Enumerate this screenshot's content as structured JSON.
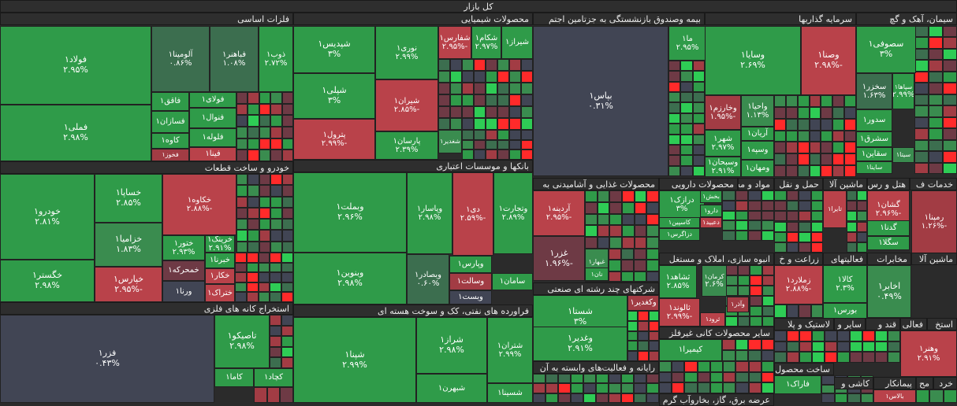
{
  "title": "کل بازار",
  "colors": {
    "g3": "#2f9b49",
    "g2": "#3a8c4f",
    "g1": "#3c6e4f",
    "n": "#414554",
    "r1": "#6e3a45",
    "r2": "#a23c44",
    "r3": "#b9424a",
    "gb": "#2ecc55",
    "rb": "#ff2a2a"
  },
  "chart_data": {
    "type": "treemap",
    "sectors": [
      {
        "name": "فلزات اساسی",
        "stocks": [
          {
            "name": "فولاد۱",
            "change": 2.95
          },
          {
            "name": "آلومینا۱",
            "change": 0.86
          },
          {
            "name": "فباهنر۱",
            "change": 1.08
          },
          {
            "name": "ذوب۱",
            "change": 2.72
          },
          {
            "name": "فملی۱",
            "change": 2.98
          },
          {
            "name": "فولای۱"
          },
          {
            "name": "فاقق۱"
          },
          {
            "name": "فنوال۱"
          },
          {
            "name": "فسازان۱"
          },
          {
            "name": "فلوله۱"
          },
          {
            "name": "کاوه۱"
          },
          {
            "name": "فینا۱"
          },
          {
            "name": "فخوز۱"
          }
        ]
      },
      {
        "name": "محصولات شیمیایی",
        "stocks": [
          {
            "name": "شپدیس۱",
            "change": 3
          },
          {
            "name": "نوری۱",
            "change": 2.99
          },
          {
            "name": "شفارس۱",
            "change": -2.95
          },
          {
            "name": "شکام۱",
            "change": 2.97
          },
          {
            "name": "شیراز۱"
          },
          {
            "name": "شپلی۱",
            "change": 3
          },
          {
            "name": "شیران۱",
            "change": -2.85
          },
          {
            "name": "پترول۱",
            "change": -2.99
          },
          {
            "name": "پارسان۱",
            "change": 2.39
          },
          {
            "name": "شغدیر۱"
          }
        ]
      },
      {
        "name": "بیمه وصندوق بازنشستگی به جزتامین اجتم",
        "stocks": [
          {
            "name": "بپاس۱",
            "change": 0.31
          },
          {
            "name": "ما۱",
            "change": 2.95
          }
        ]
      },
      {
        "name": "سرمایه گذاریها",
        "stocks": [
          {
            "name": "وسایا۱",
            "change": 2.69
          },
          {
            "name": "وصنا۱",
            "change": -2.98
          },
          {
            "name": "وخارزم۱",
            "change": -1.95
          },
          {
            "name": "واحیا۱",
            "change": 1.13
          },
          {
            "name": "آریان۱"
          },
          {
            "name": "شهر۱",
            "change": 2.97
          },
          {
            "name": "وسپه۱"
          },
          {
            "name": "وسبحان۱",
            "change": 2.91
          },
          {
            "name": "ومهان۱"
          }
        ]
      },
      {
        "name": "سیمان، آهک و گچ",
        "stocks": [
          {
            "name": "سصوفی۱",
            "change": 3
          },
          {
            "name": "سخزر۱",
            "change": 1.63
          },
          {
            "name": "سپاها۱",
            "change": 2.99
          },
          {
            "name": "سدور۱"
          },
          {
            "name": "سشرق۱"
          },
          {
            "name": "سقاین۱"
          },
          {
            "name": "سیتا۱"
          },
          {
            "name": "ساینا۱"
          }
        ]
      },
      {
        "name": "خودرو و ساخت قطعات",
        "stocks": [
          {
            "name": "خودرو۱",
            "change": 2.81
          },
          {
            "name": "خساپا۱",
            "change": 2.85
          },
          {
            "name": "خکاوه۱",
            "change": -2.88
          },
          {
            "name": "خزامیا۱",
            "change": 1.83
          },
          {
            "name": "ختور۱",
            "change": 2.93
          },
          {
            "name": "خرینگ۱",
            "change": 2.91
          },
          {
            "name": "خگستر۱",
            "change": 2.98
          },
          {
            "name": "خپارس۱",
            "change": -2.95
          },
          {
            "name": "خمحرکه۱"
          },
          {
            "name": "خبرنا۱"
          },
          {
            "name": "خکار۱"
          },
          {
            "name": "ورنا۱"
          },
          {
            "name": "ختراک۱"
          }
        ]
      },
      {
        "name": "بانکها و موسسات اعتباری",
        "stocks": [
          {
            "name": "وبملت۱",
            "change": 2.96
          },
          {
            "name": "وپاسار۱",
            "change": 2.98
          },
          {
            "name": "دی۱",
            "change": -2.59
          },
          {
            "name": "وتجارت۱",
            "change": 2.89
          },
          {
            "name": "وبنوین۱",
            "change": 2.98
          },
          {
            "name": "وبصادر۱",
            "change": 0.6
          },
          {
            "name": "وپارس۱"
          },
          {
            "name": "وسالت۱"
          },
          {
            "name": "سامان۱"
          },
          {
            "name": "وبست۱"
          }
        ]
      },
      {
        "name": "استخراج کانه های فلزی",
        "stocks": [
          {
            "name": "فزر۱",
            "change": 0.43
          },
          {
            "name": "تاصیکو۱",
            "change": 2.98
          },
          {
            "name": "کاما۱"
          },
          {
            "name": "کچاد۱"
          }
        ]
      },
      {
        "name": "فراورده های نفتی، کک و سوخت هسته ای",
        "stocks": [
          {
            "name": "شپنا۱",
            "change": 2.99
          },
          {
            "name": "شراز۱",
            "change": 2.98
          },
          {
            "name": "شتران۱",
            "change": 2.99
          },
          {
            "name": "شبهرن۱"
          },
          {
            "name": "شسینا۱"
          }
        ]
      },
      {
        "name": "محصولات غذایی و آشامیدنی به",
        "stocks": [
          {
            "name": "آردینه۱",
            "change": -2.95
          },
          {
            "name": "غزر۱",
            "change": -1.96
          },
          {
            "name": "غبهار۱"
          },
          {
            "name": "نان۱"
          }
        ]
      },
      {
        "name": "شرکتهای چند رشته ای صنعتی",
        "stocks": [
          {
            "name": "شستا۱",
            "change": 3
          },
          {
            "name": "وغدیر۱",
            "change": 2.91
          },
          {
            "name": "وکغدیر۱"
          }
        ]
      },
      {
        "name": "رایانه و فعالیت‌های وابسته به آن",
        "stocks": []
      },
      {
        "name": "محصولات دارویی",
        "stocks": [
          {
            "name": "درازک۱",
            "change": 3
          },
          {
            "name": "بخش۱"
          },
          {
            "name": "دارو۱"
          },
          {
            "name": "کاسپین۱"
          },
          {
            "name": "دعبید۱"
          },
          {
            "name": "دزاگرس۱"
          }
        ]
      },
      {
        "name": "انبوه سازی، املاک و مستغل",
        "stocks": [
          {
            "name": "ثشاهد۱",
            "change": 2.85
          },
          {
            "name": "کرمان۱",
            "change": 2.6
          },
          {
            "name": "ثالوند۱",
            "change": -2.99
          },
          {
            "name": "ثرود۱"
          },
          {
            "name": "وآذر۱"
          }
        ]
      },
      {
        "name": "سایر محصولات کانی غیرفلز",
        "stocks": [
          {
            "name": "کیمیرا۱"
          }
        ]
      },
      {
        "name": "مواد و محصولات"
      },
      {
        "name": "حمل و نقل"
      },
      {
        "name": "ماشین آلا"
      },
      {
        "name": "هتل و رس"
      },
      {
        "name": "خدمات ف"
      },
      {
        "name": "زراعت و خ",
        "stocks": [
          {
            "name": "زملارد۱",
            "change": -2.88
          }
        ]
      },
      {
        "name": "فعالیتهای",
        "stocks": [
          {
            "name": "کالا۱",
            "change": 2.3
          },
          {
            "name": "بورس۱"
          }
        ]
      },
      {
        "name": "مخابرات",
        "stocks": [
          {
            "name": "اخابر۱",
            "change": 0.49
          }
        ]
      },
      {
        "name": "ماشین آلا"
      },
      {
        "name": "ماشین آلات",
        "stocks": [
          {
            "name": "گشان۱",
            "change": -2.96
          },
          {
            "name": "تایرا۱"
          },
          {
            "name": "گدنا۱"
          },
          {
            "name": "سگلا۱"
          }
        ]
      },
      {
        "name": "رمپنا۱",
        "change": -1.26
      },
      {
        "name": "لاستیک و پلا"
      },
      {
        "name": "سایر و"
      },
      {
        "name": "قند و"
      },
      {
        "name": "فعالی"
      },
      {
        "name": "استخ"
      },
      {
        "name": "وهنر۱",
        "change": 2.91
      },
      {
        "name": "ساخت محصول",
        "stocks": [
          {
            "name": "فاراک۱"
          }
        ]
      },
      {
        "name": "کاشی و"
      },
      {
        "name": "پیمانکار"
      },
      {
        "name": "مح"
      },
      {
        "name": "خرد"
      },
      {
        "name": "بالاس۱"
      },
      {
        "name": "عرضه برق، گاز، بخاروآب گرم"
      }
    ]
  },
  "tiles": [
    {
      "t": "فولاد۱",
      "p": "۲.۹۵%",
      "c": "g3",
      "big": 1
    },
    {
      "t": "آلومینا۱",
      "p": "۰.۸۶%",
      "c": "g1"
    },
    {
      "t": "فباهنر۱",
      "p": "۱.۰۸%",
      "c": "g1"
    },
    {
      "t": "ذوب۱",
      "p": "۲.۷۲%",
      "c": "g3"
    },
    {
      "t": "فملی۱",
      "p": "۲.۹۸%",
      "c": "g3",
      "big": 1
    },
    {
      "t": "فاقق۱",
      "p": "",
      "c": "g3"
    },
    {
      "t": "فولای۱",
      "p": "",
      "c": "g3"
    },
    {
      "t": "فسازان۱",
      "p": "",
      "c": "g3"
    },
    {
      "t": "فنوال۱",
      "p": "",
      "c": "g3"
    },
    {
      "t": "کاوه۱",
      "p": "",
      "c": "g3"
    },
    {
      "t": "فلوله۱",
      "p": "",
      "c": "g3"
    },
    {
      "t": "فخوز۱",
      "p": "",
      "c": "r2"
    },
    {
      "t": "فینا۱",
      "p": "",
      "c": "r3"
    },
    {
      "t": "شپدیس۱",
      "p": "۳%",
      "c": "g3",
      "big": 1
    },
    {
      "t": "نوری۱",
      "p": "۲.۹۹%",
      "c": "g3"
    },
    {
      "t": "شفارس۱",
      "p": "-۲.۹۵%",
      "c": "r3"
    },
    {
      "t": "شکام۱",
      "p": "۲.۹۷%",
      "c": "g3"
    },
    {
      "t": "شیراز۱",
      "p": "",
      "c": "g3"
    },
    {
      "t": "شپلی۱",
      "p": "۳%",
      "c": "g3",
      "big": 1
    },
    {
      "t": "شیران۱",
      "p": "-۲.۸۵%",
      "c": "r3"
    },
    {
      "t": "پترول۱",
      "p": "-۲.۹۹%",
      "c": "r3"
    },
    {
      "t": "پارسان۱",
      "p": "۲.۳۹%",
      "c": "g3"
    },
    {
      "t": "شغدیر۱",
      "p": "",
      "c": "g2"
    },
    {
      "t": "بپاس۱",
      "p": "۰.۳۱%",
      "c": "n",
      "big": 1
    },
    {
      "t": "ما۱",
      "p": "۲.۹۵%",
      "c": "g3"
    },
    {
      "t": "وسایا۱",
      "p": "۲.۶۹%",
      "c": "g3",
      "big": 1
    },
    {
      "t": "وصنا۱",
      "p": "-۲.۹۸%",
      "c": "r3",
      "big": 1
    },
    {
      "t": "وخارزم۱",
      "p": "-۱.۹۵%",
      "c": "r2"
    },
    {
      "t": "واحیا۱",
      "p": "۱.۱۳%",
      "c": "g2"
    },
    {
      "t": "آریان۱",
      "p": "",
      "c": "g3"
    },
    {
      "t": "شهر۱",
      "p": "۲.۹۷%",
      "c": "g3"
    },
    {
      "t": "وسپه۱",
      "p": "",
      "c": "g3"
    },
    {
      "t": "وسبحان۱",
      "p": "۲.۹۱%",
      "c": "g3"
    },
    {
      "t": "ومهان۱",
      "p": "",
      "c": "g3"
    },
    {
      "t": "سصوفی۱",
      "p": "۳%",
      "c": "g3",
      "big": 1
    },
    {
      "t": "سخزر۱",
      "p": "۱.۶۳%",
      "c": "g1"
    },
    {
      "t": "سپاها۱",
      "p": "۲.۹۹%",
      "c": "g3"
    },
    {
      "t": "سدور۱",
      "p": "",
      "c": "g3"
    },
    {
      "t": "سشرق۱",
      "p": "",
      "c": "g3"
    },
    {
      "t": "سقاین۱",
      "p": "",
      "c": "g3"
    },
    {
      "t": "سیتا۱",
      "p": "",
      "c": "g2"
    },
    {
      "t": "ساینا۱",
      "p": "",
      "c": "g3"
    },
    {
      "t": "خودرو۱",
      "p": "۲.۸۱%",
      "c": "g3",
      "big": 1
    },
    {
      "t": "خساپا۱",
      "p": "۲.۸۵%",
      "c": "g3",
      "big": 1
    },
    {
      "t": "خکاوه۱",
      "p": "-۲.۸۸%",
      "c": "r3"
    },
    {
      "t": "خزامیا۱",
      "p": "۱.۸۳%",
      "c": "g2",
      "big": 1
    },
    {
      "t": "ختور۱",
      "p": "۲.۹۳%",
      "c": "g3"
    },
    {
      "t": "خرینگ۱",
      "p": "۲.۹۱%",
      "c": "g3"
    },
    {
      "t": "خگستر۱",
      "p": "۲.۹۸%",
      "c": "g3",
      "big": 1
    },
    {
      "t": "خپارس۱",
      "p": "-۲.۹۵%",
      "c": "r3",
      "big": 1
    },
    {
      "t": "خمحرکه۱",
      "p": "",
      "c": "r1"
    },
    {
      "t": "خبرنا۱",
      "p": "",
      "c": "g3"
    },
    {
      "t": "خکار۱",
      "p": "",
      "c": "r3"
    },
    {
      "t": "ورنا۱",
      "p": "",
      "c": "n"
    },
    {
      "t": "ختراک۱",
      "p": "",
      "c": "r3"
    },
    {
      "t": "وبملت۱",
      "p": "۲.۹۶%",
      "c": "g3",
      "big": 1
    },
    {
      "t": "وپاسار۱",
      "p": "۲.۹۸%",
      "c": "g3"
    },
    {
      "t": "دی۱",
      "p": "-۲.۵۹%",
      "c": "r3"
    },
    {
      "t": "وتجارت۱",
      "p": "۲.۸۹%",
      "c": "g3"
    },
    {
      "t": "وبنوین۱",
      "p": "۲.۹۸%",
      "c": "g3",
      "big": 1
    },
    {
      "t": "وبصادر۱",
      "p": "۰.۶۰%",
      "c": "g1"
    },
    {
      "t": "وپارس۱",
      "p": "",
      "c": "g3"
    },
    {
      "t": "وسالت۱",
      "p": "",
      "c": "r2"
    },
    {
      "t": "سامان۱",
      "p": "",
      "c": "g3"
    },
    {
      "t": "وبست۱",
      "p": "",
      "c": "n"
    },
    {
      "t": "فزر۱",
      "p": "۰.۴۳%",
      "c": "n",
      "big": 1
    },
    {
      "t": "تاصیکو۱",
      "p": "۲.۹۸%",
      "c": "g3",
      "big": 1
    },
    {
      "t": "کاما۱",
      "p": "",
      "c": "g3"
    },
    {
      "t": "کچاد۱",
      "p": "",
      "c": "g3"
    },
    {
      "t": "شپنا۱",
      "p": "۲.۹۹%",
      "c": "g3",
      "big": 1
    },
    {
      "t": "شراز۱",
      "p": "۲.۹۸%",
      "c": "g3",
      "big": 1
    },
    {
      "t": "شتران۱",
      "p": "۲.۹۹%",
      "c": "g3"
    },
    {
      "t": "شبهرن۱",
      "p": "",
      "c": "g3"
    },
    {
      "t": "شسینا۱",
      "p": "",
      "c": "g3"
    },
    {
      "t": "آردینه۱",
      "p": "-۲.۹۵%",
      "c": "r3"
    },
    {
      "t": "غزر۱",
      "p": "-۱.۹۶%",
      "c": "r1",
      "big": 1
    },
    {
      "t": "غبهار۱",
      "p": "",
      "c": "g2"
    },
    {
      "t": "نان۱",
      "p": "",
      "c": "g3"
    },
    {
      "t": "شستا۱",
      "p": "۳%",
      "c": "g3",
      "big": 1
    },
    {
      "t": "وغدیر۱",
      "p": "۲.۹۱%",
      "c": "g3",
      "big": 1
    },
    {
      "t": "وکغدیر۱",
      "p": "",
      "c": "r2"
    },
    {
      "t": "درازک۱",
      "p": "۳%",
      "c": "g3"
    },
    {
      "t": "بخش۱",
      "p": "",
      "c": "g3"
    },
    {
      "t": "دارو۱",
      "p": "",
      "c": "g3"
    },
    {
      "t": "کاسپین۱",
      "p": "",
      "c": "g3"
    },
    {
      "t": "دعبید۱",
      "p": "",
      "c": "r3"
    },
    {
      "t": "دزاگرس۱",
      "p": "",
      "c": "g3"
    },
    {
      "t": "ثشاهد۱",
      "p": "۲.۸۵%",
      "c": "g3"
    },
    {
      "t": "کرمان۱",
      "p": "۲.۶%",
      "c": "g2"
    },
    {
      "t": "ثالوند۱",
      "p": "-۲.۹۹%",
      "c": "r3"
    },
    {
      "t": "ثرود۱",
      "p": "",
      "c": "r3"
    },
    {
      "t": "وآذر۱",
      "p": "",
      "c": "r2"
    },
    {
      "t": "کیمیرا۱",
      "p": "",
      "c": "g3"
    },
    {
      "t": "زملارد۱",
      "p": "-۲.۸۸%",
      "c": "r3"
    },
    {
      "t": "کالا۱",
      "p": "۲.۳%",
      "c": "g3"
    },
    {
      "t": "بورس۱",
      "p": "",
      "c": "g3"
    },
    {
      "t": "اخابر۱",
      "p": "۰.۴۹%",
      "c": "g2",
      "big": 1
    },
    {
      "t": "گشان۱",
      "p": "-۲.۹۶%",
      "c": "r3"
    },
    {
      "t": "تایرا۱",
      "p": "",
      "c": "r3"
    },
    {
      "t": "گدنا۱",
      "p": "",
      "c": "g3"
    },
    {
      "t": "سگلا۱",
      "p": "",
      "c": "g3"
    },
    {
      "t": "رمپنا۱",
      "p": "-۱.۲۶%",
      "c": "r2"
    },
    {
      "t": "وهنر۱",
      "p": "۲.۹۱%",
      "c": "r3"
    },
    {
      "t": "فاراک۱",
      "p": "",
      "c": "g3"
    },
    {
      "t": "بالاس۱",
      "p": "",
      "c": "r3"
    }
  ],
  "headers": [
    "کل بازار",
    "فلزات اساسی",
    "محصولات شیمیایی",
    "بیمه وصندوق بازنشستگی به جزتامین اجتم",
    "سرمایه گذاریها",
    "سیمان، آهک و گچ",
    "خودرو و ساخت قطعات",
    "بانکها و موسسات اعتباری",
    "استخراج کانه های فلزی",
    "فراورده های نفتی، کک و سوخت هسته ای",
    "محصولات غذایی و آشامیدنی به",
    "شرکتهای چند رشته ای صنعتی",
    "رایانه و فعالیت‌های وابسته به آن",
    "محصولات دارویی",
    "مواد و محصولات",
    "حمل و نقل",
    "ماشین آلا",
    "هتل و رس",
    "خدمات ف",
    "انبوه سازی، املاک و مستغل",
    "زراعت و خ",
    "فعالیتهای",
    "مخابرات",
    "ماشین آلا",
    "سایر محصولات کانی غیرفلز",
    "لاستیک و پلا",
    "سایر و",
    "قند و",
    "فعالی",
    "استخ",
    "ساخت محصول",
    "کاشی و",
    "پیمانکار",
    "مح",
    "خرد",
    "عرضه برق، گاز، بخاروآب گرم"
  ]
}
